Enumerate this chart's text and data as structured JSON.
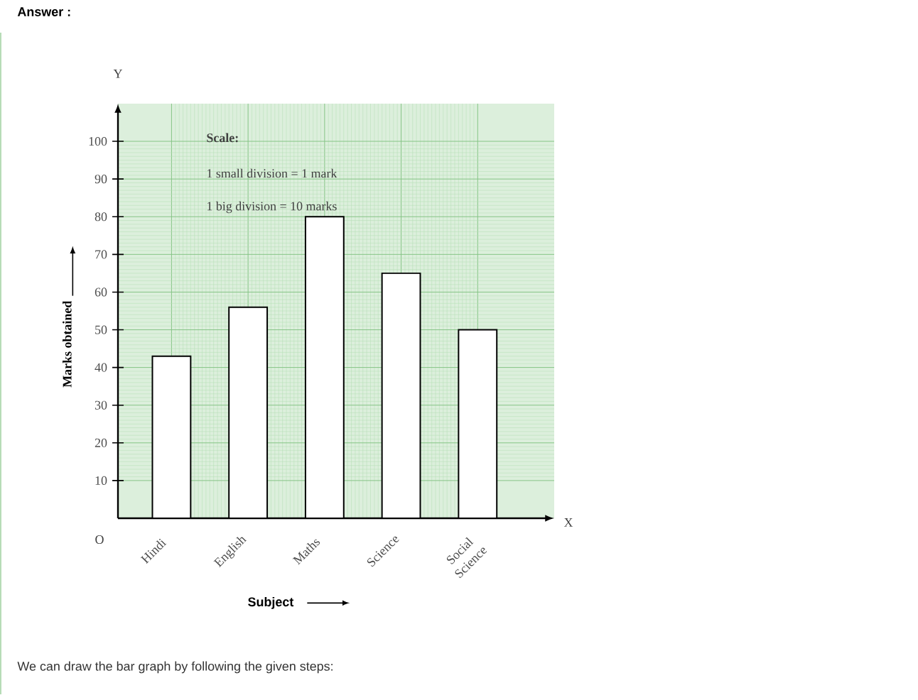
{
  "chart_data": {
    "type": "bar",
    "title": "Answer :",
    "categories": [
      "Hindi",
      "English",
      "Maths",
      "Science",
      "Social Science"
    ],
    "values": [
      43,
      56,
      80,
      65,
      50
    ],
    "color": "#ffffff",
    "xlabel": "Subject",
    "ylabel": "Marks obtained",
    "ylim": [
      0,
      110
    ],
    "yticks": [
      10,
      20,
      30,
      40,
      50,
      60,
      70,
      80,
      90,
      100
    ],
    "grid": true,
    "annotations": [
      "Scale:",
      "1 small division = 1 mark",
      "1 big division = 10 marks",
      "Y",
      "X",
      "O",
      "We can draw the bar graph by following the given steps:"
    ]
  }
}
